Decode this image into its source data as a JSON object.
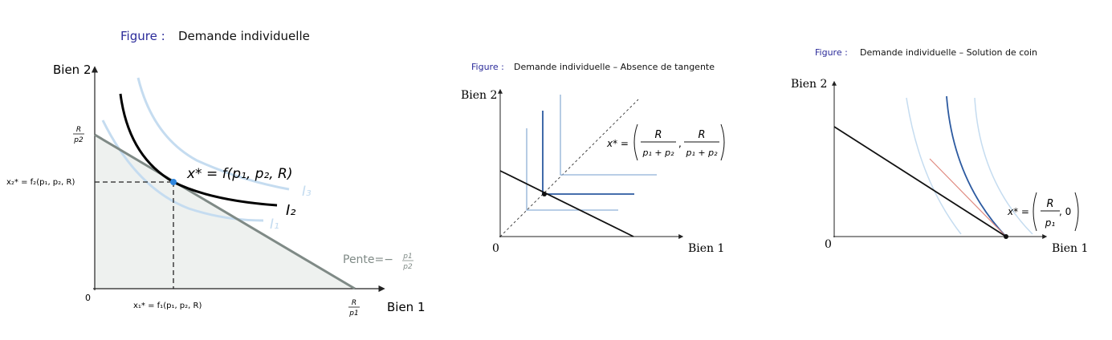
{
  "colors": {
    "caption_label": "#2b2b9a",
    "budget_line_gray": "#7f8a86",
    "shaded_region": "#eef1ef",
    "light_curve": "#c5dcf0",
    "mid_curve": "#8fb0d6",
    "dark_curve": "#2c5aa0",
    "optimum_dot": "#2e86de",
    "tangent_red": "#e08a80"
  },
  "figure1": {
    "caption_label": "Figure :",
    "caption_text": "Demande individuelle",
    "y_axis_label": "Bien 2",
    "x_axis_label": "Bien 1",
    "origin_label": "0",
    "y_intercept_label_num": "R",
    "y_intercept_label_den": "p2",
    "x_intercept_label_num": "R",
    "x_intercept_label_den": "p1",
    "x2_star_label": "x₂* = f₂(p₁, p₂, R)",
    "x1_star_label": "x₁* = f₁(p₁, p₂, R)",
    "optimum_label": "x* = f(p₁, p₂, R)",
    "curve_i1": "I₁",
    "curve_i2": "I₂",
    "curve_i3": "I₃",
    "slope_label": "Pente=−",
    "slope_num": "p1",
    "slope_den": "p2"
  },
  "figure2": {
    "caption_label": "Figure :",
    "caption_text": "Demande individuelle – Absence de tangente",
    "y_axis_label": "Bien 2",
    "x_axis_label": "Bien 1",
    "origin_label": "0",
    "solution_lhs": "x* =",
    "frac1_num": "R",
    "frac1_den": "p₁ + p₂",
    "frac2_num": "R",
    "frac2_den": "p₁ + p₂"
  },
  "figure3": {
    "caption_label": "Figure :",
    "caption_text": "Demande individuelle – Solution de coin",
    "y_axis_label": "Bien 2",
    "x_axis_label": "Bien 1",
    "origin_label": "0",
    "solution_lhs": "x* =",
    "frac_num": "R",
    "frac_den": "p₁",
    "second_component": ", 0"
  }
}
